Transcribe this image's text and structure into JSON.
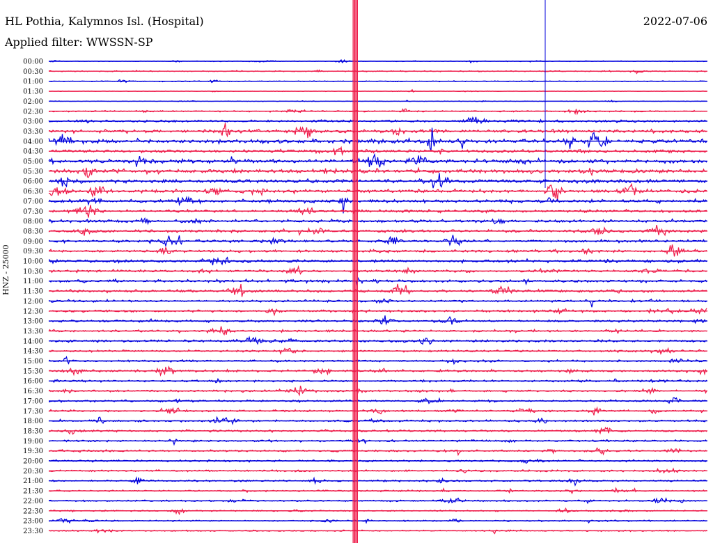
{
  "header": {
    "station": "HL Pothia, Kalymnos Isl. (Hospital)",
    "date": "2022-07-06",
    "filter": "Applied filter: WWSSN-SP"
  },
  "chart_data": {
    "type": "line",
    "title": "HL Pothia, Kalymnos Isl. (Hospital)",
    "subtitle": "Applied filter: WWSSN-SP",
    "ylabel": "HNZ - 25000",
    "xlabel": "",
    "row_labels": [
      "00:00",
      "00:30",
      "01:00",
      "01:30",
      "02:00",
      "02:30",
      "03:00",
      "03:30",
      "04:00",
      "04:30",
      "05:00",
      "05:30",
      "06:00",
      "06:30",
      "07:00",
      "07:30",
      "08:00",
      "08:30",
      "09:00",
      "09:30",
      "10:00",
      "10:30",
      "11:00",
      "11:30",
      "12:00",
      "12:30",
      "13:00",
      "13:30",
      "14:00",
      "14:30",
      "15:00",
      "15:30",
      "16:00",
      "16:30",
      "17:00",
      "17:30",
      "18:00",
      "18:30",
      "19:00",
      "19:30",
      "20:00",
      "20:30",
      "21:00",
      "21:30",
      "22:00",
      "22:30",
      "23:00",
      "23:30"
    ],
    "series_colors": [
      "#0000dd",
      "#ee1c4a"
    ],
    "grid": false,
    "legend": "none",
    "row_amplitude": [
      0.8,
      1.2,
      1.0,
      0.5,
      0.6,
      1.5,
      2.2,
      3.5,
      4.5,
      3.5,
      4.0,
      4.5,
      4.0,
      3.5,
      3.5,
      3.0,
      3.0,
      3.0,
      2.8,
      2.8,
      3.0,
      2.6,
      3.0,
      2.8,
      2.4,
      2.4,
      2.2,
      2.2,
      2.4,
      2.2,
      2.2,
      2.4,
      2.2,
      2.2,
      2.0,
      2.0,
      2.0,
      2.2,
      2.0,
      2.0,
      2.0,
      2.0,
      1.8,
      1.6,
      1.6,
      1.5,
      1.4,
      1.4
    ]
  }
}
